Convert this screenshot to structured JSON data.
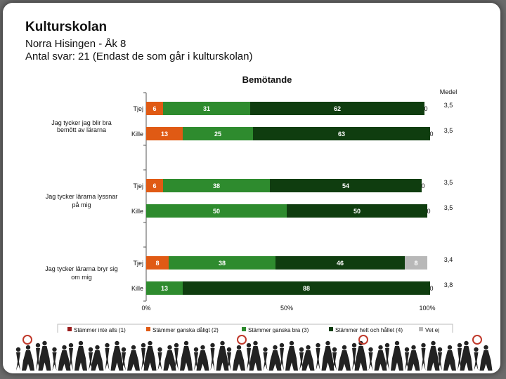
{
  "header": {
    "title": "Kulturskolan",
    "subtitle1": "Norra Hisingen - Åk 8",
    "subtitle2": "Antal svar: 21 (Endast de som går i kulturskolan)"
  },
  "chart_data": {
    "type": "bar",
    "orientation": "horizontal-stacked-100",
    "title": "Bemötande",
    "mean_header": "Medel",
    "x_ticks": [
      "0%",
      "50%",
      "100%"
    ],
    "xlim": [
      0,
      100
    ],
    "grid": false,
    "legend_position": "bottom",
    "series": [
      {
        "name": "Stämmer inte alls (1)",
        "color": "#9b1c1c"
      },
      {
        "name": "Stämmer ganska dåligt (2)",
        "color": "#e05a14"
      },
      {
        "name": "Stämmer ganska bra (3)",
        "color": "#2e8b2e"
      },
      {
        "name": "Stämmer helt och hållet (4)",
        "color": "#0f3d0f"
      },
      {
        "name": "Vet ej",
        "color": "#b8b8b8"
      }
    ],
    "groups": [
      {
        "question": "Jag tycker jag blir bra bemött av lärarna",
        "rows": [
          {
            "label": "Tjej",
            "values": [
              0,
              6,
              31,
              62,
              0
            ],
            "labels": [
              "0",
              "6",
              "31",
              "62",
              "0"
            ],
            "mean": "3,5"
          },
          {
            "label": "Kille",
            "values": [
              0,
              13,
              25,
              63,
              0
            ],
            "labels": [
              "0",
              "13",
              "25",
              "63",
              "0"
            ],
            "mean": "3,5"
          }
        ]
      },
      {
        "question": "Jag tycker lärarna lyssnar på mig",
        "rows": [
          {
            "label": "Tjej",
            "values": [
              0,
              6,
              38,
              54,
              0
            ],
            "labels": [
              "0",
              "6",
              "38",
              "54",
              "0"
            ],
            "mean": "3,5"
          },
          {
            "label": "Kille",
            "values": [
              0,
              0,
              50,
              50,
              0
            ],
            "labels": [
              "0",
              "",
              "50",
              "50",
              "0"
            ],
            "mean": "3,5"
          }
        ]
      },
      {
        "question": "Jag tycker lärarna bryr sig om mig",
        "rows": [
          {
            "label": "Tjej",
            "values": [
              0,
              8,
              38,
              46,
              8
            ],
            "labels": [
              "0",
              "8",
              "38",
              "46",
              "8"
            ],
            "mean": "3,4"
          },
          {
            "label": "Kille",
            "values": [
              0,
              0,
              13,
              88,
              0
            ],
            "labels": [
              "0",
              "",
              "13",
              "88",
              "0"
            ],
            "mean": "3,8"
          }
        ]
      }
    ]
  },
  "decor": {
    "footer_figures": "silhouette-crowd",
    "colors": {
      "background": "#6b6b6b",
      "slide": "#ffffff"
    }
  }
}
